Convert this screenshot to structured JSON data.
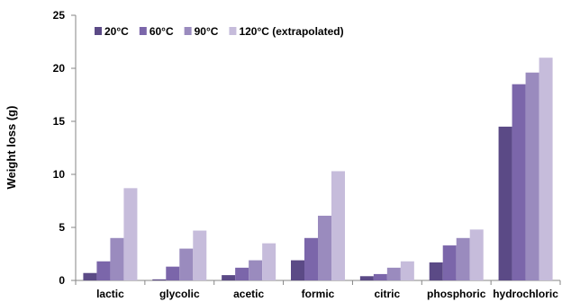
{
  "chart_data": {
    "type": "bar",
    "title": "",
    "xlabel": "",
    "ylabel": "Weight loss (g)",
    "ylim": [
      0,
      25
    ],
    "yticks": [
      0,
      5,
      10,
      15,
      20,
      25
    ],
    "grid": false,
    "legend_position": "top-left",
    "categories": [
      "lactic",
      "glycolic",
      "acetic",
      "formic",
      "citric",
      "phosphoric",
      "hydrochloric"
    ],
    "series": [
      {
        "name": "20°C",
        "color": "#5b4a86",
        "values": [
          0.7,
          0.1,
          0.5,
          1.9,
          0.4,
          1.7,
          14.5
        ]
      },
      {
        "name": "60°C",
        "color": "#7b66aa",
        "values": [
          1.8,
          1.3,
          1.2,
          4.0,
          0.6,
          3.3,
          18.5
        ]
      },
      {
        "name": "90°C",
        "color": "#9a8bbe",
        "values": [
          4.0,
          3.0,
          1.9,
          6.1,
          1.2,
          4.0,
          19.6
        ]
      },
      {
        "name": "120°C (extrapolated)",
        "color": "#c6bcdb",
        "values": [
          8.7,
          4.7,
          3.5,
          10.3,
          1.8,
          4.8,
          21.0
        ]
      }
    ]
  }
}
